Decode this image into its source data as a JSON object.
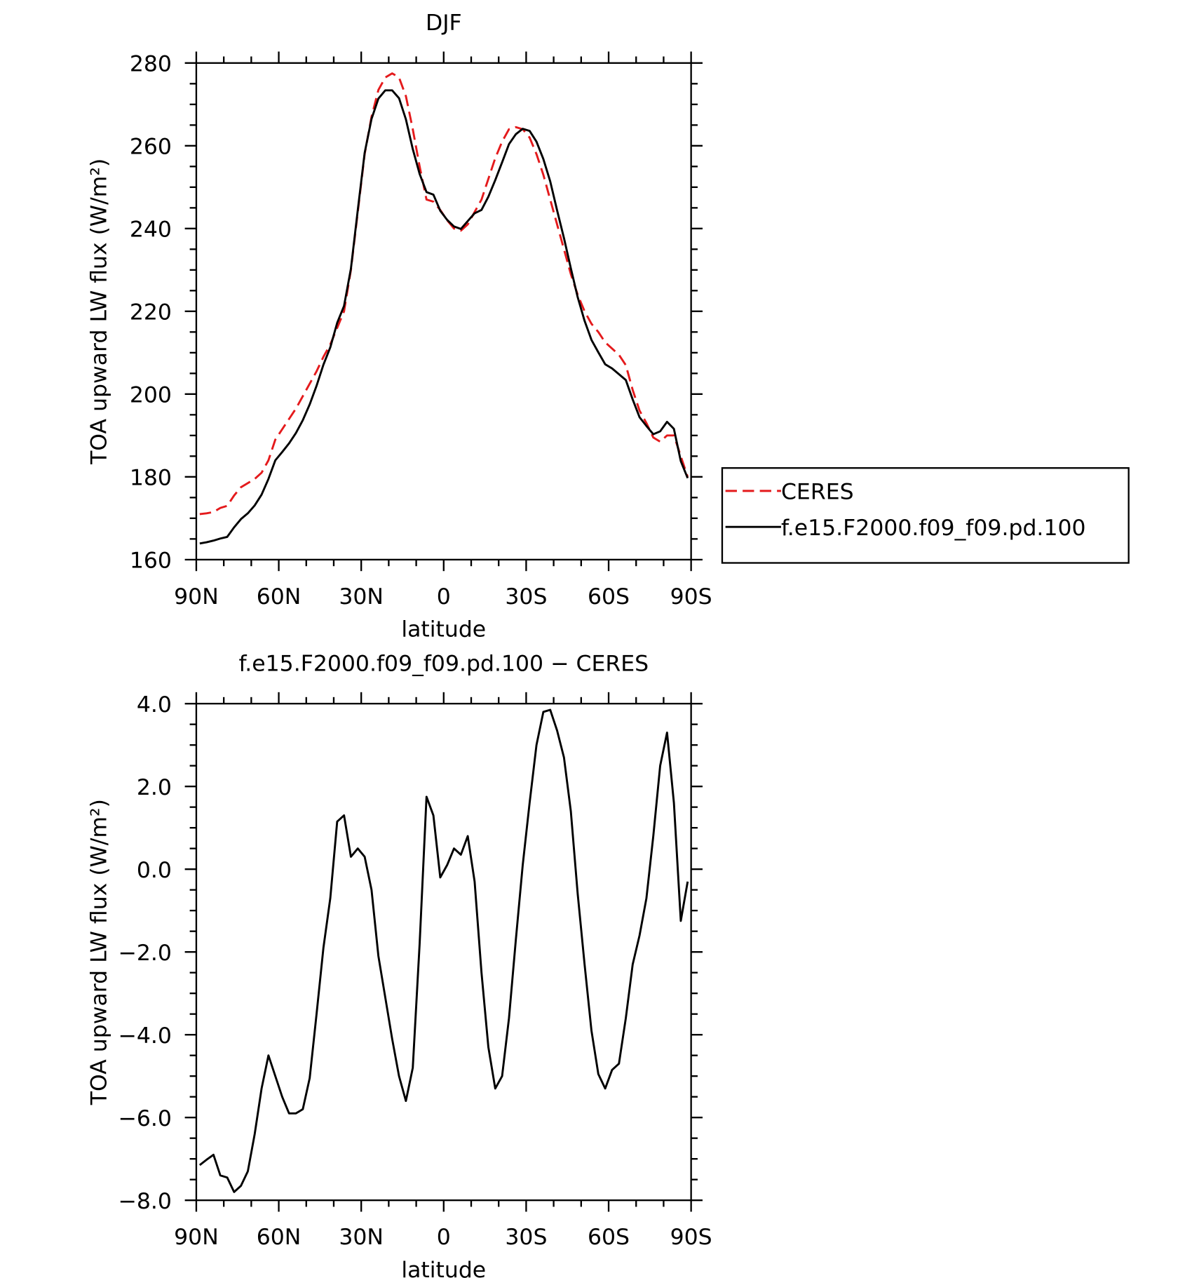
{
  "chart_data": [
    {
      "type": "line",
      "title": "DJF",
      "xlabel": "latitude",
      "ylabel": "TOA upward LW flux (W/m²)",
      "x": [
        88.75,
        86.25,
        83.75,
        81.25,
        78.75,
        76.25,
        73.75,
        71.25,
        68.75,
        66.25,
        63.75,
        61.25,
        58.75,
        56.25,
        53.75,
        51.25,
        48.75,
        46.25,
        43.75,
        41.25,
        38.75,
        36.25,
        33.75,
        31.25,
        28.75,
        26.25,
        23.75,
        21.25,
        18.75,
        16.25,
        13.75,
        11.25,
        8.75,
        6.25,
        3.75,
        1.25,
        -1.25,
        -3.75,
        -6.25,
        -8.75,
        -11.25,
        -13.75,
        -16.25,
        -18.75,
        -21.25,
        -23.75,
        -26.25,
        -28.75,
        -31.25,
        -33.75,
        -36.25,
        -38.75,
        -41.25,
        -43.75,
        -46.25,
        -48.75,
        -51.25,
        -53.75,
        -56.25,
        -58.75,
        -61.25,
        -63.75,
        -66.25,
        -68.75,
        -71.25,
        -73.75,
        -76.25,
        -78.75,
        -81.25,
        -83.75,
        -86.25,
        -88.75
      ],
      "series": [
        {
          "name": "CERES",
          "color": "#e41a1c",
          "line_style": "dashed",
          "values": [
            171,
            171.2,
            171.5,
            172.5,
            173,
            175.5,
            177.5,
            178.5,
            179.5,
            181,
            184,
            189,
            191.5,
            194,
            196.5,
            199.5,
            202.5,
            205.5,
            209,
            212,
            216,
            220,
            230,
            244,
            258,
            267,
            273.5,
            276.5,
            277.5,
            276.5,
            272,
            264,
            255,
            247,
            246.5,
            244.5,
            242,
            240,
            239.5,
            241,
            244,
            247,
            252,
            257,
            261,
            264,
            264.5,
            264,
            262,
            258,
            253,
            247,
            241,
            235,
            229,
            224,
            220,
            217,
            215,
            212.5,
            211,
            209.5,
            207,
            201,
            196,
            193,
            189.5,
            188.5,
            190,
            190,
            185,
            180
          ]
        },
        {
          "name": "f.e15.F2000.f09_f09.pd.100",
          "color": "#000000",
          "line_style": "solid",
          "values": [
            163.9,
            164.2,
            164.6,
            165.1,
            165.5,
            167.8,
            169.8,
            171.2,
            173.1,
            175.7,
            179.5,
            184.0,
            186.0,
            188.1,
            190.6,
            193.7,
            197.5,
            202.0,
            207.1,
            211.3,
            217.2,
            221.3,
            230.3,
            244.5,
            258.3,
            266.5,
            271.4,
            273.4,
            273.4,
            271.5,
            266.4,
            259.2,
            253.2,
            248.8,
            248.2,
            244.3,
            242.1,
            240.5,
            239.9,
            241.8,
            243.7,
            244.5,
            247.7,
            251.7,
            256.0,
            260.4,
            262.8,
            264.1,
            263.6,
            261.0,
            256.8,
            251.4,
            244.4,
            237.7,
            230.4,
            223.4,
            217.7,
            213.1,
            210.1,
            207.2,
            206.2,
            204.8,
            203.4,
            198.7,
            194.4,
            192.3,
            190.3,
            191.0,
            193.3,
            191.6,
            183.8,
            179.7
          ]
        }
      ],
      "xlim": [
        90,
        -90
      ],
      "xticks": [
        {
          "value": 90,
          "label": "90N"
        },
        {
          "value": 60,
          "label": "60N"
        },
        {
          "value": 30,
          "label": "30N"
        },
        0,
        {
          "value": -30,
          "label": "30S"
        },
        {
          "value": -60,
          "label": "60S"
        },
        {
          "value": -90,
          "label": "90S"
        }
      ],
      "ylim": [
        160,
        280
      ],
      "yticks": [
        160,
        180,
        200,
        220,
        240,
        260,
        280
      ],
      "legend": "right"
    },
    {
      "type": "line",
      "title": "f.e15.F2000.f09_f09.pd.100 − CERES",
      "xlabel": "latitude",
      "ylabel": "TOA upward LW flux (W/m²)",
      "x": [
        88.75,
        86.25,
        83.75,
        81.25,
        78.75,
        76.25,
        73.75,
        71.25,
        68.75,
        66.25,
        63.75,
        61.25,
        58.75,
        56.25,
        53.75,
        51.25,
        48.75,
        46.25,
        43.75,
        41.25,
        38.75,
        36.25,
        33.75,
        31.25,
        28.75,
        26.25,
        23.75,
        21.25,
        18.75,
        16.25,
        13.75,
        11.25,
        8.75,
        6.25,
        3.75,
        1.25,
        -1.25,
        -3.75,
        -6.25,
        -8.75,
        -11.25,
        -13.75,
        -16.25,
        -18.75,
        -21.25,
        -23.75,
        -26.25,
        -28.75,
        -31.25,
        -33.75,
        -36.25,
        -38.75,
        -41.25,
        -43.75,
        -46.25,
        -48.75,
        -51.25,
        -53.75,
        -56.25,
        -58.75,
        -61.25,
        -63.75,
        -66.25,
        -68.75,
        -71.25,
        -73.75,
        -76.25,
        -78.75,
        -81.25,
        -83.75,
        -86.25,
        -88.75
      ],
      "color": "#000000",
      "values": [
        -7.15,
        -7.02,
        -6.9,
        -7.4,
        -7.45,
        -7.8,
        -7.65,
        -7.3,
        -6.4,
        -5.3,
        -4.5,
        -5.0,
        -5.5,
        -5.9,
        -5.9,
        -5.8,
        -5.05,
        -3.5,
        -1.9,
        -0.7,
        1.15,
        1.3,
        0.3,
        0.5,
        0.3,
        -0.5,
        -2.1,
        -3.1,
        -4.1,
        -5.0,
        -5.6,
        -4.8,
        -1.8,
        1.75,
        1.3,
        -0.2,
        0.1,
        0.5,
        0.35,
        0.8,
        -0.3,
        -2.5,
        -4.3,
        -5.3,
        -5.0,
        -3.6,
        -1.7,
        0.1,
        1.6,
        3.0,
        3.8,
        3.85,
        3.35,
        2.7,
        1.4,
        -0.6,
        -2.3,
        -3.9,
        -4.95,
        -5.3,
        -4.85,
        -4.7,
        -3.6,
        -2.3,
        -1.6,
        -0.7,
        0.8,
        2.5,
        3.3,
        1.6,
        -1.25,
        -0.3
      ],
      "xlim": [
        90,
        -90
      ],
      "xticks": [
        {
          "value": 90,
          "label": "90N"
        },
        {
          "value": 60,
          "label": "60N"
        },
        {
          "value": 30,
          "label": "30N"
        },
        0,
        {
          "value": -30,
          "label": "30S"
        },
        {
          "value": -60,
          "label": "60S"
        },
        {
          "value": -90,
          "label": "90S"
        }
      ],
      "ylim": [
        -8,
        4
      ],
      "yticks": [
        {
          "value": -8,
          "label": "−8.0"
        },
        {
          "value": -6,
          "label": "−6.0"
        },
        {
          "value": -4,
          "label": "−4.0"
        },
        {
          "value": -2,
          "label": "−2.0"
        },
        {
          "value": 0,
          "label": "0.0"
        },
        {
          "value": 2,
          "label": "2.0"
        },
        {
          "value": 4,
          "label": "4.0"
        }
      ]
    }
  ]
}
